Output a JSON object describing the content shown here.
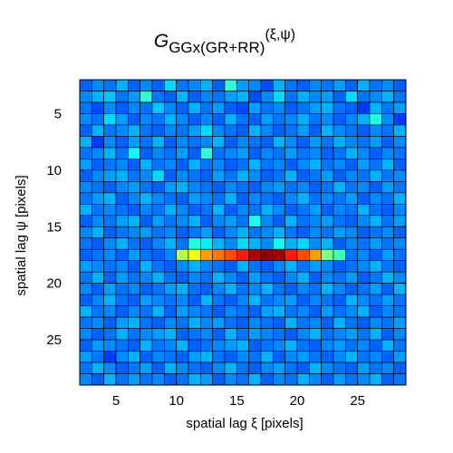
{
  "chart_data": {
    "type": "heatmap",
    "title": {
      "symbol": "G",
      "subscript": "GGx(GR+RR)",
      "superscript": "(ξ,ψ)"
    },
    "xlabel": "spatial lag ξ [pixels]",
    "ylabel": "spatial lag ψ [pixels]",
    "x_range": [
      2,
      29
    ],
    "y_range": [
      2,
      29
    ],
    "y_axis_direction": "top-to-bottom",
    "x_ticks": [
      5,
      10,
      15,
      20,
      25
    ],
    "y_ticks": [
      5,
      10,
      15,
      20,
      25
    ],
    "colormap": "jet",
    "grid": true,
    "rows": [
      [
        0.22,
        0.26,
        0.24,
        0.3,
        0.22,
        0.26,
        0.22,
        0.34,
        0.24,
        0.26,
        0.3,
        0.22,
        0.42,
        0.28,
        0.26,
        0.2,
        0.3,
        0.24,
        0.22,
        0.26,
        0.24,
        0.28,
        0.22,
        0.3,
        0.24,
        0.26,
        0.22
      ],
      [
        0.26,
        0.3,
        0.32,
        0.24,
        0.28,
        0.42,
        0.24,
        0.22,
        0.3,
        0.22,
        0.26,
        0.24,
        0.28,
        0.3,
        0.2,
        0.26,
        0.34,
        0.24,
        0.3,
        0.26,
        0.28,
        0.22,
        0.34,
        0.24,
        0.26,
        0.3,
        0.24
      ],
      [
        0.24,
        0.2,
        0.26,
        0.22,
        0.26,
        0.24,
        0.32,
        0.26,
        0.22,
        0.3,
        0.24,
        0.28,
        0.22,
        0.2,
        0.28,
        0.24,
        0.26,
        0.22,
        0.24,
        0.28,
        0.3,
        0.24,
        0.22,
        0.18,
        0.3,
        0.24,
        0.28
      ],
      [
        0.26,
        0.24,
        0.34,
        0.28,
        0.22,
        0.26,
        0.24,
        0.3,
        0.26,
        0.22,
        0.26,
        0.22,
        0.3,
        0.24,
        0.22,
        0.28,
        0.24,
        0.26,
        0.3,
        0.24,
        0.26,
        0.22,
        0.26,
        0.3,
        0.4,
        0.26,
        0.18
      ],
      [
        0.22,
        0.3,
        0.24,
        0.26,
        0.3,
        0.24,
        0.22,
        0.26,
        0.24,
        0.28,
        0.34,
        0.26,
        0.24,
        0.22,
        0.3,
        0.26,
        0.22,
        0.24,
        0.28,
        0.22,
        0.3,
        0.26,
        0.24,
        0.22,
        0.26,
        0.24,
        0.3
      ],
      [
        0.3,
        0.18,
        0.26,
        0.22,
        0.28,
        0.24,
        0.3,
        0.22,
        0.26,
        0.24,
        0.26,
        0.3,
        0.22,
        0.26,
        0.24,
        0.22,
        0.3,
        0.26,
        0.22,
        0.28,
        0.24,
        0.3,
        0.26,
        0.24,
        0.28,
        0.22,
        0.26
      ],
      [
        0.24,
        0.26,
        0.3,
        0.24,
        0.38,
        0.22,
        0.26,
        0.24,
        0.28,
        0.22,
        0.42,
        0.24,
        0.26,
        0.28,
        0.22,
        0.26,
        0.24,
        0.28,
        0.24,
        0.26,
        0.22,
        0.24,
        0.3,
        0.26,
        0.22,
        0.26,
        0.24
      ],
      [
        0.28,
        0.22,
        0.24,
        0.26,
        0.22,
        0.3,
        0.24,
        0.26,
        0.22,
        0.3,
        0.24,
        0.26,
        0.22,
        0.24,
        0.3,
        0.24,
        0.26,
        0.22,
        0.26,
        0.3,
        0.24,
        0.26,
        0.22,
        0.28,
        0.24,
        0.3,
        0.22
      ],
      [
        0.22,
        0.26,
        0.28,
        0.3,
        0.24,
        0.26,
        0.34,
        0.22,
        0.26,
        0.24,
        0.22,
        0.28,
        0.24,
        0.3,
        0.26,
        0.22,
        0.24,
        0.3,
        0.22,
        0.24,
        0.28,
        0.22,
        0.26,
        0.24,
        0.3,
        0.24,
        0.26
      ],
      [
        0.26,
        0.24,
        0.22,
        0.26,
        0.28,
        0.24,
        0.22,
        0.28,
        0.3,
        0.26,
        0.24,
        0.22,
        0.26,
        0.24,
        0.22,
        0.26,
        0.28,
        0.24,
        0.26,
        0.22,
        0.24,
        0.3,
        0.24,
        0.26,
        0.22,
        0.28,
        0.24
      ],
      [
        0.24,
        0.28,
        0.3,
        0.22,
        0.26,
        0.3,
        0.26,
        0.24,
        0.22,
        0.28,
        0.26,
        0.24,
        0.3,
        0.22,
        0.26,
        0.24,
        0.22,
        0.26,
        0.3,
        0.24,
        0.26,
        0.24,
        0.28,
        0.22,
        0.26,
        0.24,
        0.3
      ],
      [
        0.3,
        0.24,
        0.26,
        0.24,
        0.22,
        0.26,
        0.24,
        0.3,
        0.26,
        0.22,
        0.24,
        0.3,
        0.22,
        0.26,
        0.24,
        0.3,
        0.26,
        0.22,
        0.24,
        0.28,
        0.22,
        0.26,
        0.24,
        0.3,
        0.24,
        0.22,
        0.26
      ],
      [
        0.22,
        0.26,
        0.24,
        0.28,
        0.3,
        0.22,
        0.28,
        0.24,
        0.26,
        0.3,
        0.22,
        0.26,
        0.28,
        0.24,
        0.4,
        0.26,
        0.22,
        0.3,
        0.24,
        0.26,
        0.28,
        0.24,
        0.22,
        0.26,
        0.3,
        0.24,
        0.28
      ],
      [
        0.26,
        0.3,
        0.22,
        0.24,
        0.26,
        0.28,
        0.24,
        0.26,
        0.22,
        0.24,
        0.28,
        0.22,
        0.26,
        0.3,
        0.24,
        0.26,
        0.3,
        0.24,
        0.22,
        0.26,
        0.24,
        0.28,
        0.26,
        0.22,
        0.24,
        0.26,
        0.22
      ],
      [
        0.24,
        0.22,
        0.26,
        0.3,
        0.24,
        0.22,
        0.26,
        0.3,
        0.24,
        0.4,
        0.36,
        0.3,
        0.26,
        0.34,
        0.3,
        0.26,
        0.38,
        0.3,
        0.34,
        0.26,
        0.3,
        0.22,
        0.26,
        0.24,
        0.28,
        0.24,
        0.26
      ],
      [
        0.22,
        0.24,
        0.26,
        0.22,
        0.28,
        0.24,
        0.22,
        0.26,
        0.55,
        0.62,
        0.72,
        0.76,
        0.8,
        0.85,
        0.95,
        0.98,
        0.96,
        0.85,
        0.8,
        0.72,
        0.5,
        0.44,
        0.24,
        0.26,
        0.22,
        0.28,
        0.24
      ],
      [
        0.28,
        0.26,
        0.24,
        0.26,
        0.22,
        0.3,
        0.24,
        0.22,
        0.26,
        0.3,
        0.26,
        0.24,
        0.22,
        0.3,
        0.24,
        0.22,
        0.26,
        0.3,
        0.24,
        0.28,
        0.26,
        0.22,
        0.24,
        0.26,
        0.3,
        0.24,
        0.22
      ],
      [
        0.24,
        0.3,
        0.22,
        0.28,
        0.24,
        0.26,
        0.3,
        0.24,
        0.22,
        0.26,
        0.24,
        0.3,
        0.26,
        0.22,
        0.28,
        0.24,
        0.22,
        0.26,
        0.3,
        0.22,
        0.26,
        0.24,
        0.28,
        0.22,
        0.24,
        0.3,
        0.26
      ],
      [
        0.26,
        0.22,
        0.28,
        0.24,
        0.26,
        0.22,
        0.24,
        0.28,
        0.3,
        0.24,
        0.22,
        0.26,
        0.3,
        0.24,
        0.26,
        0.3,
        0.24,
        0.22,
        0.26,
        0.24,
        0.3,
        0.26,
        0.22,
        0.24,
        0.28,
        0.22,
        0.3
      ],
      [
        0.22,
        0.26,
        0.3,
        0.24,
        0.22,
        0.28,
        0.26,
        0.24,
        0.26,
        0.22,
        0.3,
        0.24,
        0.22,
        0.26,
        0.3,
        0.24,
        0.26,
        0.28,
        0.22,
        0.26,
        0.24,
        0.22,
        0.3,
        0.26,
        0.24,
        0.28,
        0.24
      ],
      [
        0.3,
        0.24,
        0.26,
        0.22,
        0.26,
        0.24,
        0.3,
        0.22,
        0.28,
        0.26,
        0.24,
        0.22,
        0.26,
        0.24,
        0.22,
        0.28,
        0.3,
        0.24,
        0.26,
        0.22,
        0.28,
        0.24,
        0.26,
        0.3,
        0.22,
        0.26,
        0.24
      ],
      [
        0.24,
        0.26,
        0.22,
        0.28,
        0.3,
        0.24,
        0.22,
        0.26,
        0.24,
        0.3,
        0.26,
        0.28,
        0.24,
        0.22,
        0.26,
        0.24,
        0.22,
        0.3,
        0.24,
        0.26,
        0.22,
        0.3,
        0.24,
        0.22,
        0.26,
        0.24,
        0.28
      ],
      [
        0.26,
        0.22,
        0.24,
        0.3,
        0.24,
        0.26,
        0.28,
        0.3,
        0.22,
        0.24,
        0.26,
        0.22,
        0.3,
        0.24,
        0.28,
        0.26,
        0.24,
        0.22,
        0.26,
        0.3,
        0.24,
        0.26,
        0.28,
        0.24,
        0.3,
        0.22,
        0.26
      ],
      [
        0.22,
        0.28,
        0.26,
        0.24,
        0.22,
        0.3,
        0.24,
        0.26,
        0.3,
        0.22,
        0.24,
        0.26,
        0.28,
        0.3,
        0.22,
        0.24,
        0.26,
        0.3,
        0.24,
        0.22,
        0.26,
        0.28,
        0.24,
        0.26,
        0.22,
        0.3,
        0.24
      ],
      [
        0.28,
        0.24,
        0.18,
        0.26,
        0.3,
        0.22,
        0.26,
        0.24,
        0.22,
        0.28,
        0.3,
        0.24,
        0.22,
        0.26,
        0.24,
        0.3,
        0.22,
        0.26,
        0.28,
        0.24,
        0.22,
        0.26,
        0.3,
        0.24,
        0.26,
        0.22,
        0.28
      ],
      [
        0.24,
        0.3,
        0.26,
        0.22,
        0.24,
        0.28,
        0.22,
        0.3,
        0.26,
        0.24,
        0.22,
        0.26,
        0.3,
        0.24,
        0.22,
        0.26,
        0.28,
        0.24,
        0.22,
        0.3,
        0.26,
        0.24,
        0.22,
        0.28,
        0.24,
        0.26,
        0.22
      ],
      [
        0.26,
        0.22,
        0.3,
        0.24,
        0.28,
        0.24,
        0.26,
        0.22,
        0.24,
        0.3,
        0.28,
        0.22,
        0.26,
        0.24,
        0.3,
        0.22,
        0.26,
        0.24,
        0.3,
        0.26,
        0.22,
        0.28,
        0.24,
        0.26,
        0.3,
        0.22,
        0.24
      ]
    ]
  }
}
